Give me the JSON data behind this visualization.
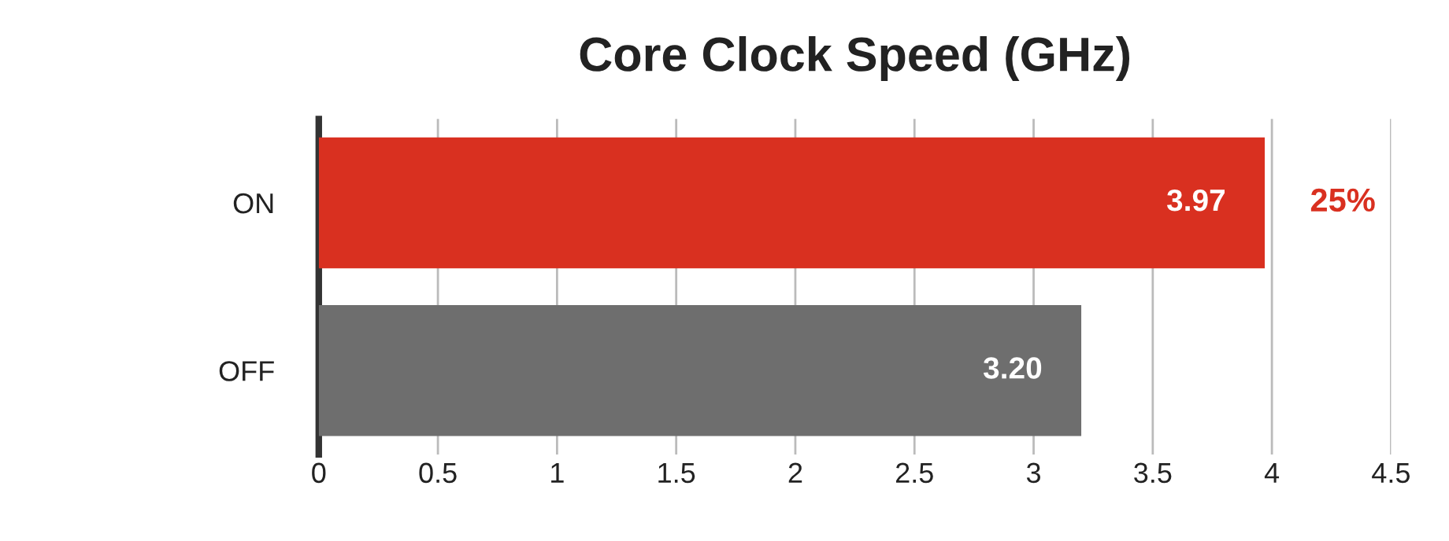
{
  "chart_data": {
    "type": "bar",
    "orientation": "horizontal",
    "title": "Core Clock Speed (GHz)",
    "categories": [
      "ON",
      "OFF"
    ],
    "values": [
      3.97,
      3.2
    ],
    "colors": [
      "#d93020",
      "#6e6e6e"
    ],
    "value_labels": [
      "3.97",
      "3.20"
    ],
    "xlim": [
      0,
      4.5
    ],
    "xticks": [
      0,
      0.5,
      1,
      1.5,
      2,
      2.5,
      3,
      3.5,
      4,
      4.5
    ],
    "grid": "x",
    "legend": false,
    "annotations": [
      "25%"
    ]
  }
}
